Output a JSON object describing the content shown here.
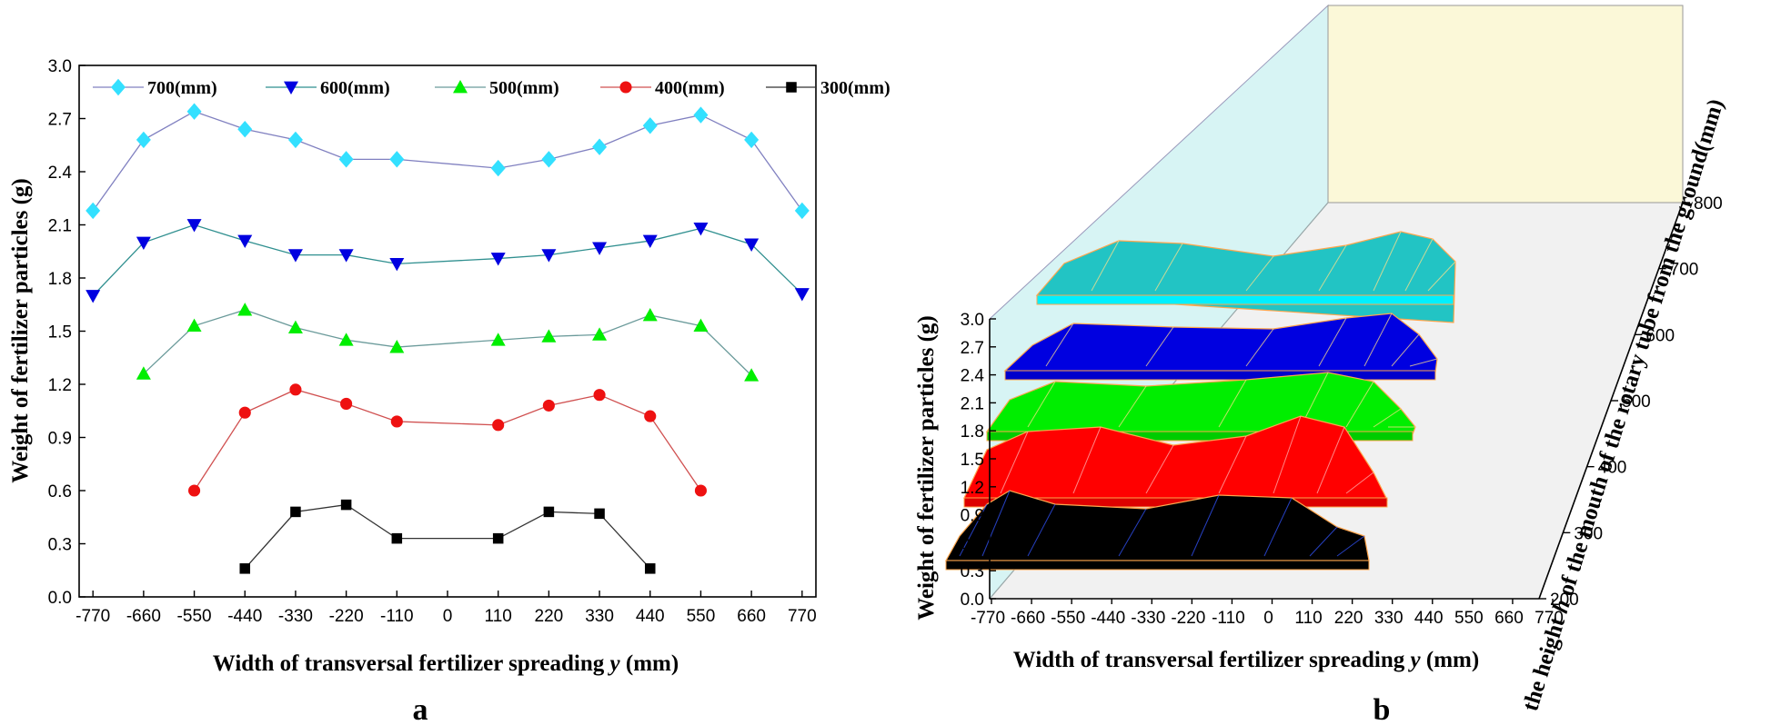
{
  "chart_data": [
    {
      "panel": "a",
      "type": "line",
      "xlabel": "Width of transversal fertilizer spreading y (mm)",
      "ylabel": "Weight of fertilizer particles (g)",
      "x_ticks": [
        -770,
        -660,
        -550,
        -440,
        -330,
        -220,
        -110,
        0,
        110,
        220,
        330,
        440,
        550,
        660,
        770
      ],
      "y_ticks": [
        0.0,
        0.3,
        0.6,
        0.9,
        1.2,
        1.5,
        1.8,
        2.1,
        2.4,
        2.7,
        3.0
      ],
      "xlim": [
        -800,
        800
      ],
      "ylim": [
        0,
        3.0
      ],
      "legend_position": "top",
      "series": [
        {
          "name": "700(mm)",
          "color": "#8080c0",
          "marker": "diamond",
          "marker_color": "#33e0ff",
          "x": [
            -770,
            -660,
            -550,
            -440,
            -330,
            -220,
            -110,
            110,
            220,
            330,
            440,
            550,
            660,
            770
          ],
          "y": [
            2.18,
            2.58,
            2.74,
            2.64,
            2.58,
            2.47,
            2.47,
            2.42,
            2.47,
            2.54,
            2.66,
            2.72,
            2.58,
            2.18
          ]
        },
        {
          "name": "600(mm)",
          "color": "#2f8f8f",
          "marker": "triangle-down",
          "marker_color": "#0000e0",
          "x": [
            -770,
            -660,
            -550,
            -440,
            -330,
            -220,
            -110,
            110,
            220,
            330,
            440,
            550,
            660,
            770
          ],
          "y": [
            1.7,
            2.0,
            2.1,
            2.01,
            1.93,
            1.93,
            1.88,
            1.91,
            1.93,
            1.97,
            2.01,
            2.08,
            1.99,
            1.71
          ]
        },
        {
          "name": "500(mm)",
          "color": "#6a9a9a",
          "marker": "triangle-up",
          "marker_color": "#00ee00",
          "x": [
            -660,
            -550,
            -440,
            -330,
            -220,
            -110,
            110,
            220,
            330,
            440,
            550,
            660
          ],
          "y": [
            1.26,
            1.53,
            1.62,
            1.52,
            1.45,
            1.41,
            1.45,
            1.47,
            1.48,
            1.59,
            1.53,
            1.25
          ]
        },
        {
          "name": "400(mm)",
          "color": "#d05050",
          "marker": "circle",
          "marker_color": "#ee1111",
          "x": [
            -550,
            -440,
            -330,
            -220,
            -110,
            110,
            220,
            330,
            440,
            550
          ],
          "y": [
            0.6,
            1.04,
            1.17,
            1.09,
            0.99,
            0.97,
            1.08,
            1.14,
            1.02,
            0.6
          ]
        },
        {
          "name": "300(mm)",
          "color": "#333333",
          "marker": "square",
          "marker_color": "#000000",
          "x": [
            -440,
            -330,
            -220,
            -110,
            110,
            220,
            330,
            440
          ],
          "y": [
            0.16,
            0.48,
            0.52,
            0.33,
            0.33,
            0.48,
            0.47,
            0.16
          ]
        }
      ],
      "label": "a"
    },
    {
      "panel": "b",
      "type": "surface",
      "xlabel": "Width of transversal fertilizer spreading y (mm)",
      "ylabel": "Weight of fertilizer particles (g)",
      "zlabel_parts": [
        "the height ",
        "h",
        " of the mouth of the rotary tube from the ground(mm)"
      ],
      "x_ticks": [
        -770,
        -660,
        -550,
        -440,
        -330,
        -220,
        -110,
        0,
        110,
        220,
        330,
        440,
        550,
        660,
        770
      ],
      "y_ticks": [
        0.0,
        0.3,
        0.6,
        0.9,
        1.2,
        1.5,
        1.8,
        2.1,
        2.4,
        2.7,
        3.0
      ],
      "z_ticks": [
        200,
        300,
        400,
        500,
        600,
        700,
        800
      ],
      "surfaces": [
        {
          "height": 300,
          "color": "#000000"
        },
        {
          "height": 400,
          "color": "#ff0000"
        },
        {
          "height": 500,
          "color": "#00ee00"
        },
        {
          "height": 600,
          "color": "#0000e0"
        },
        {
          "height": 700,
          "color": "#22c4c4"
        }
      ],
      "label": "b"
    }
  ],
  "panel_a": {
    "xlabel_pre": "Width of transversal fertilizer spreading ",
    "xlabel_var": "y",
    "xlabel_post": " (mm)",
    "ylabel": "Weight of fertilizer particles (g)",
    "label": "a"
  },
  "panel_b": {
    "xlabel_pre": "Width of transversal fertilizer spreading ",
    "xlabel_var": "y",
    "xlabel_post": " (mm)",
    "ylabel": "Weight of fertilizer particles (g)",
    "zlabel_pre": "the height ",
    "zlabel_var": "h",
    "zlabel_post": " of the mouth of the rotary tube from the ground(mm)",
    "label": "b"
  }
}
